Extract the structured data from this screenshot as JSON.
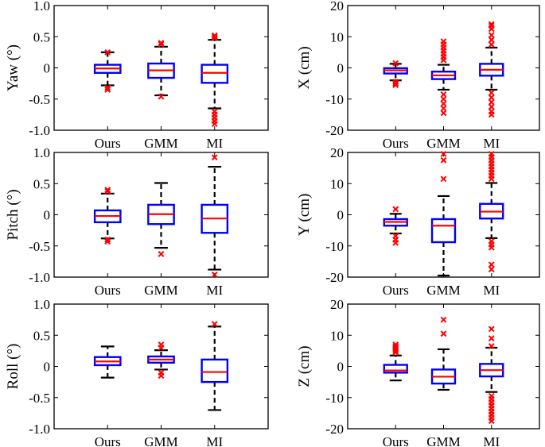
{
  "chart_data": [
    {
      "type": "box",
      "ylabel": "Yaw (°)",
      "ylim": [
        -1.0,
        1.0
      ],
      "yticks": [
        "-1.0",
        "-0.5",
        "0",
        "0.5",
        "1.0"
      ],
      "categories": [
        "Ours",
        "GMM",
        "MI"
      ],
      "boxes": [
        {
          "whisker_low": -0.28,
          "q1": -0.08,
          "median": -0.01,
          "q3": 0.05,
          "whisker_high": 0.25,
          "outliers": [
            0.25,
            -0.32,
            -0.35
          ]
        },
        {
          "whisker_low": -0.44,
          "q1": -0.16,
          "median": -0.04,
          "q3": 0.07,
          "whisker_high": 0.34,
          "outliers": [
            0.38,
            0.4,
            -0.46
          ]
        },
        {
          "whisker_low": -0.65,
          "q1": -0.24,
          "median": -0.08,
          "q3": 0.05,
          "whisker_high": 0.45,
          "outliers": [
            0.48,
            0.5,
            0.52,
            -0.7,
            -0.75,
            -0.8,
            -0.85,
            -0.9
          ]
        }
      ]
    },
    {
      "type": "box",
      "ylabel": "X (cm)",
      "ylim": [
        -20,
        20
      ],
      "yticks": [
        "-20",
        "-10",
        "0",
        "10",
        "20"
      ],
      "categories": [
        "Ours",
        "GMM",
        "MI"
      ],
      "boxes": [
        {
          "whisker_low": -4.0,
          "q1": -1.8,
          "median": -0.8,
          "q3": -0.1,
          "whisker_high": 1.3,
          "outliers": [
            1.5,
            -4.5,
            -5.0,
            -5.5
          ]
        },
        {
          "whisker_low": -7.0,
          "q1": -3.6,
          "median": -2.4,
          "q3": -1.2,
          "whisker_high": 1.0,
          "outliers": [
            2.5,
            3.5,
            4.5,
            5.5,
            6.5,
            7.5,
            8.5,
            -8.5,
            -10.0,
            -11.5,
            -13.0,
            -14.5
          ]
        },
        {
          "whisker_low": -7.0,
          "q1": -2.5,
          "median": -0.6,
          "q3": 1.3,
          "whisker_high": 6.5,
          "outliers": [
            7.5,
            9.0,
            10.5,
            12.5,
            13.5,
            14.0,
            -8.0,
            -9.5,
            -11.0,
            -12.5,
            -14.0,
            -15.0
          ]
        }
      ]
    },
    {
      "type": "box",
      "ylabel": "Pitch (°)",
      "ylim": [
        -1.0,
        1.0
      ],
      "yticks": [
        "-1.0",
        "-0.5",
        "0",
        "0.5",
        "1.0"
      ],
      "categories": [
        "Ours",
        "GMM",
        "MI"
      ],
      "boxes": [
        {
          "whisker_low": -0.38,
          "q1": -0.12,
          "median": -0.02,
          "q3": 0.07,
          "whisker_high": 0.34,
          "outliers": [
            0.38,
            0.4,
            -0.4,
            -0.43
          ]
        },
        {
          "whisker_low": -0.53,
          "q1": -0.15,
          "median": 0.01,
          "q3": 0.16,
          "whisker_high": 0.51,
          "outliers": [
            -0.63
          ]
        },
        {
          "whisker_low": -0.88,
          "q1": -0.29,
          "median": -0.06,
          "q3": 0.16,
          "whisker_high": 0.77,
          "outliers": [
            0.92,
            -0.96
          ]
        }
      ]
    },
    {
      "type": "box",
      "ylabel": "Y (cm)",
      "ylim": [
        -20,
        20
      ],
      "yticks": [
        "-20",
        "-10",
        "0",
        "10",
        "20"
      ],
      "categories": [
        "Ours",
        "GMM",
        "MI"
      ],
      "boxes": [
        {
          "whisker_low": -6.0,
          "q1": -3.5,
          "median": -2.3,
          "q3": -1.4,
          "whisker_high": 0.3,
          "outliers": [
            1.8,
            -6.8,
            -8.0,
            -9.0
          ]
        },
        {
          "whisker_low": -19.5,
          "q1": -8.8,
          "median": -3.5,
          "q3": -1.4,
          "whisker_high": 6.0,
          "outliers": [
            11.5,
            17.5,
            19.5
          ]
        },
        {
          "whisker_low": -7.5,
          "q1": -1.2,
          "median": 1.0,
          "q3": 3.5,
          "whisker_high": 10.2,
          "outliers": [
            11.5,
            12.5,
            13.5,
            14.5,
            15.5,
            16.5,
            17.5,
            18.5,
            19.5,
            -8.5,
            -9.5,
            -10.5,
            -16.0,
            -17.5
          ]
        }
      ]
    },
    {
      "type": "box",
      "ylabel": "Roll (°)",
      "ylim": [
        -1.0,
        1.0
      ],
      "yticks": [
        "-1.0",
        "-0.5",
        "0",
        "0.5",
        "1.0"
      ],
      "categories": [
        "Ours",
        "GMM",
        "MI"
      ],
      "boxes": [
        {
          "whisker_low": -0.18,
          "q1": 0.02,
          "median": 0.08,
          "q3": 0.15,
          "whisker_high": 0.32,
          "outliers": []
        },
        {
          "whisker_low": -0.05,
          "q1": 0.06,
          "median": 0.11,
          "q3": 0.16,
          "whisker_high": 0.26,
          "outliers": [
            0.3,
            0.35,
            -0.1,
            -0.15
          ]
        },
        {
          "whisker_low": -0.7,
          "q1": -0.25,
          "median": -0.09,
          "q3": 0.11,
          "whisker_high": 0.64,
          "outliers": [
            0.68
          ]
        }
      ]
    },
    {
      "type": "box",
      "ylabel": "Z (cm)",
      "ylim": [
        -20,
        20
      ],
      "yticks": [
        "-20",
        "-10",
        "0",
        "10",
        "20"
      ],
      "categories": [
        "Ours",
        "GMM",
        "MI"
      ],
      "boxes": [
        {
          "whisker_low": -4.5,
          "q1": -2.0,
          "median": -1.3,
          "q3": 0.5,
          "whisker_high": 3.5,
          "outliers": [
            4.5,
            5.0,
            5.5,
            6.0,
            6.5,
            7.0
          ]
        },
        {
          "whisker_low": -7.5,
          "q1": -5.5,
          "median": -3.3,
          "q3": -1.0,
          "whisker_high": 5.5,
          "outliers": [
            10.5,
            15.0
          ]
        },
        {
          "whisker_low": -8.2,
          "q1": -3.2,
          "median": -1.2,
          "q3": 0.8,
          "whisker_high": 6.0,
          "outliers": [
            6.5,
            9.0,
            12.0,
            -9.5,
            -10.5,
            -11.5,
            -12.5,
            -13.5,
            -14.5,
            -15.5,
            -16.5,
            -17.5
          ]
        }
      ]
    }
  ]
}
